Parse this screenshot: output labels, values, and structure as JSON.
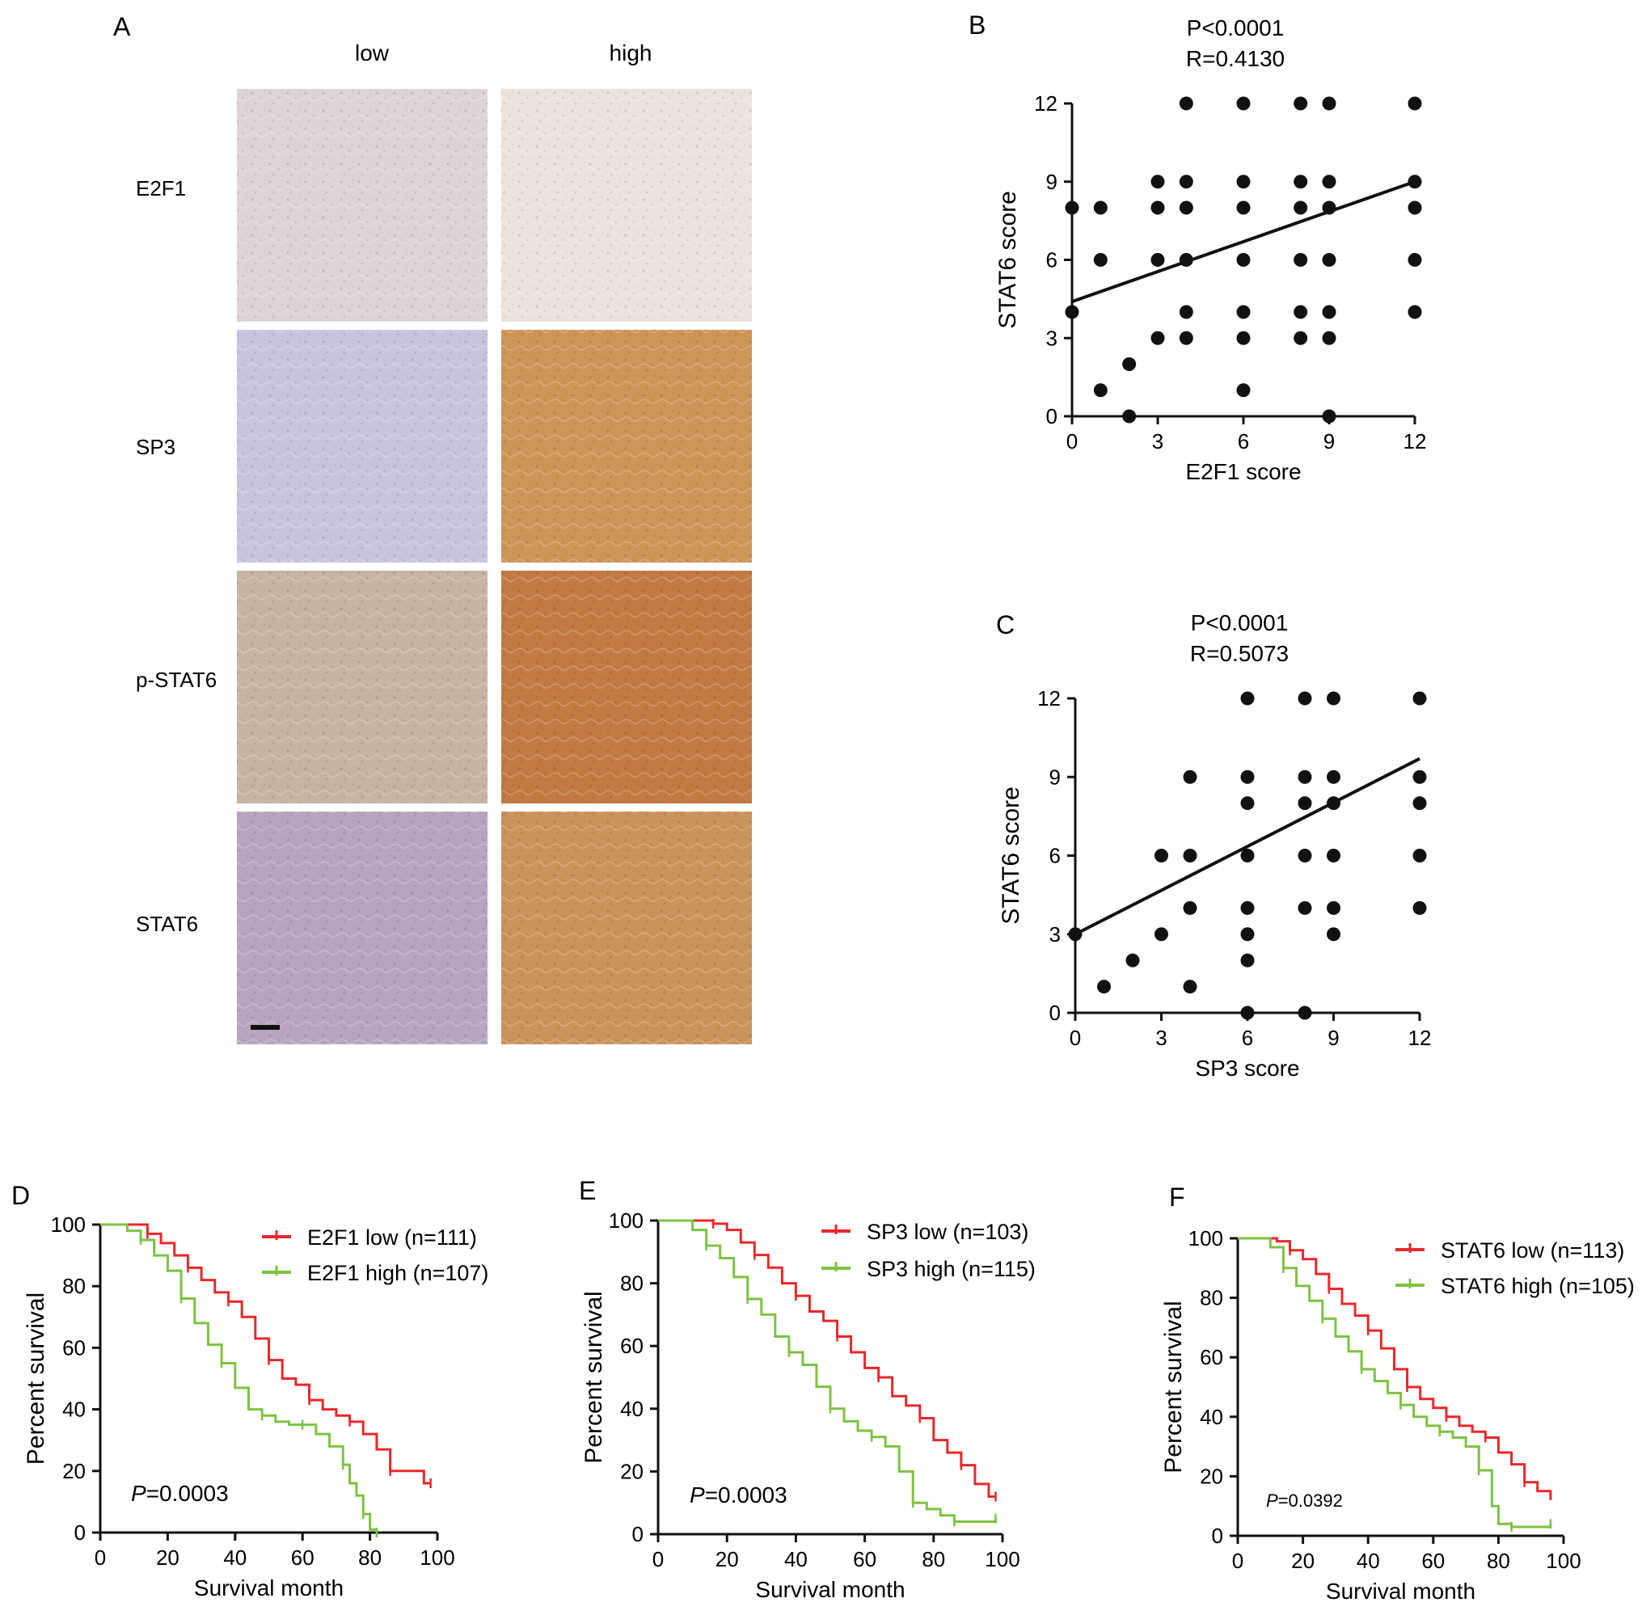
{
  "panel_A": {
    "letter": "A",
    "columns": [
      "low",
      "high"
    ],
    "rows": [
      "E2F1",
      "SP3",
      "p-STAT6",
      "STAT6"
    ],
    "tissue_colors": {
      "E2F1": {
        "low": "#ddd3d8",
        "high": "#ece4dc"
      },
      "SP3": {
        "low": "#c9c3e0",
        "high": "#cf9457"
      },
      "p-STAT6": {
        "low": "#c6b5a3",
        "high": "#c27a42"
      },
      "STAT6": {
        "low": "#b7a5bf",
        "high": "#c9935b"
      }
    }
  },
  "chart_data": [
    {
      "panel": "B",
      "type": "scatter",
      "title": "P<0.0001",
      "subtitle": "R=0.4130",
      "xlabel": "E2F1 score",
      "ylabel": "STAT6 score",
      "xlim": [
        0,
        12
      ],
      "ylim": [
        0,
        12
      ],
      "xticks": [
        0,
        3,
        6,
        9,
        12
      ],
      "yticks": [
        0,
        3,
        6,
        9,
        12
      ],
      "points": [
        [
          0,
          8
        ],
        [
          0,
          4
        ],
        [
          1,
          8
        ],
        [
          1,
          6
        ],
        [
          1,
          1
        ],
        [
          2,
          2
        ],
        [
          2,
          0
        ],
        [
          3,
          9
        ],
        [
          3,
          8
        ],
        [
          3,
          6
        ],
        [
          3,
          3
        ],
        [
          4,
          12
        ],
        [
          4,
          9
        ],
        [
          4,
          8
        ],
        [
          4,
          6
        ],
        [
          4,
          4
        ],
        [
          4,
          3
        ],
        [
          6,
          12
        ],
        [
          6,
          9
        ],
        [
          6,
          8
        ],
        [
          6,
          6
        ],
        [
          6,
          4
        ],
        [
          6,
          3
        ],
        [
          6,
          1
        ],
        [
          8,
          12
        ],
        [
          8,
          9
        ],
        [
          8,
          8
        ],
        [
          8,
          6
        ],
        [
          8,
          4
        ],
        [
          8,
          3
        ],
        [
          9,
          12
        ],
        [
          9,
          9
        ],
        [
          9,
          8
        ],
        [
          9,
          6
        ],
        [
          9,
          4
        ],
        [
          9,
          3
        ],
        [
          9,
          0
        ],
        [
          12,
          12
        ],
        [
          12,
          9
        ],
        [
          12,
          8
        ],
        [
          12,
          6
        ],
        [
          12,
          4
        ]
      ],
      "fit_line": [
        [
          0,
          4.4
        ],
        [
          12,
          9
        ]
      ]
    },
    {
      "panel": "C",
      "type": "scatter",
      "title": "P<0.0001",
      "subtitle": "R=0.5073",
      "xlabel": "SP3 score",
      "ylabel": "STAT6 score",
      "xlim": [
        0,
        12
      ],
      "ylim": [
        0,
        12
      ],
      "xticks": [
        0,
        3,
        6,
        9,
        12
      ],
      "yticks": [
        0,
        3,
        6,
        9,
        12
      ],
      "points": [
        [
          0,
          3
        ],
        [
          1,
          1
        ],
        [
          2,
          2
        ],
        [
          3,
          6
        ],
        [
          3,
          3
        ],
        [
          4,
          9
        ],
        [
          4,
          6
        ],
        [
          4,
          4
        ],
        [
          4,
          1
        ],
        [
          6,
          12
        ],
        [
          6,
          9
        ],
        [
          6,
          8
        ],
        [
          6,
          6
        ],
        [
          6,
          4
        ],
        [
          6,
          3
        ],
        [
          6,
          2
        ],
        [
          6,
          0
        ],
        [
          8,
          12
        ],
        [
          8,
          9
        ],
        [
          8,
          8
        ],
        [
          8,
          6
        ],
        [
          8,
          4
        ],
        [
          8,
          0
        ],
        [
          9,
          12
        ],
        [
          9,
          9
        ],
        [
          9,
          8
        ],
        [
          9,
          6
        ],
        [
          9,
          4
        ],
        [
          9,
          3
        ],
        [
          12,
          12
        ],
        [
          12,
          9
        ],
        [
          12,
          8
        ],
        [
          12,
          6
        ],
        [
          12,
          4
        ]
      ],
      "fit_line": [
        [
          0,
          3
        ],
        [
          12,
          9.7
        ]
      ]
    },
    {
      "panel": "D",
      "type": "line",
      "xlabel": "Survival month",
      "ylabel": "Percent survival",
      "xlim": [
        0,
        100
      ],
      "ylim": [
        0,
        100
      ],
      "xticks": [
        0,
        20,
        40,
        60,
        80,
        100
      ],
      "yticks": [
        0,
        20,
        40,
        60,
        80,
        100
      ],
      "annotation_prefix": "P",
      "annotation_value": "=0.0003",
      "series": [
        {
          "name": "E2F1 low (n=111)",
          "color": "#e8282b",
          "x": [
            0,
            10,
            14,
            18,
            22,
            26,
            30,
            34,
            38,
            42,
            46,
            50,
            54,
            58,
            62,
            66,
            70,
            74,
            78,
            82,
            86,
            90,
            96,
            98
          ],
          "y": [
            100,
            100,
            97,
            94,
            90,
            86,
            82,
            78,
            75,
            70,
            63,
            56,
            50,
            48,
            43,
            40,
            38,
            36,
            32,
            27,
            20,
            20,
            16,
            16
          ]
        },
        {
          "name": "E2F1 high (n=107)",
          "color": "#7ec242",
          "x": [
            0,
            8,
            12,
            16,
            20,
            24,
            28,
            32,
            36,
            40,
            44,
            48,
            52,
            56,
            60,
            64,
            68,
            72,
            74,
            76,
            78,
            80,
            81,
            82
          ],
          "y": [
            100,
            98,
            95,
            90,
            85,
            76,
            68,
            61,
            55,
            47,
            40,
            38,
            36,
            35,
            35,
            32,
            28,
            22,
            16,
            12,
            6,
            1,
            1,
            0
          ]
        }
      ]
    },
    {
      "panel": "E",
      "type": "line",
      "xlabel": "Survival month",
      "ylabel": "Percent survival",
      "xlim": [
        0,
        100
      ],
      "ylim": [
        0,
        100
      ],
      "xticks": [
        0,
        20,
        40,
        60,
        80,
        100
      ],
      "yticks": [
        0,
        20,
        40,
        60,
        80,
        100
      ],
      "annotation_prefix": "P",
      "annotation_value": "=0.0003",
      "series": [
        {
          "name": "SP3 low (n=103)",
          "color": "#e8282b",
          "x": [
            0,
            12,
            16,
            20,
            24,
            28,
            32,
            36,
            40,
            44,
            48,
            52,
            56,
            60,
            64,
            68,
            72,
            76,
            80,
            84,
            88,
            92,
            96,
            98
          ],
          "y": [
            100,
            100,
            99,
            97,
            93,
            89,
            85,
            80,
            76,
            71,
            68,
            63,
            58,
            53,
            50,
            44,
            41,
            37,
            30,
            26,
            22,
            16,
            12,
            12
          ]
        },
        {
          "name": "SP3 high (n=115)",
          "color": "#7ec242",
          "x": [
            0,
            10,
            14,
            18,
            22,
            26,
            30,
            34,
            38,
            42,
            46,
            50,
            54,
            58,
            62,
            66,
            70,
            74,
            78,
            82,
            86,
            90,
            96,
            98
          ],
          "y": [
            100,
            97,
            92,
            88,
            82,
            75,
            70,
            63,
            58,
            54,
            47,
            40,
            36,
            33,
            31,
            28,
            20,
            10,
            8,
            6,
            4,
            4,
            4,
            5
          ]
        }
      ]
    },
    {
      "panel": "F",
      "type": "line",
      "xlabel": "Survival month",
      "ylabel": "Percent survival",
      "xlim": [
        0,
        100
      ],
      "ylim": [
        0,
        100
      ],
      "xticks": [
        0,
        20,
        40,
        60,
        80,
        100
      ],
      "yticks": [
        0,
        20,
        40,
        60,
        80,
        100
      ],
      "annotation_prefix": "P",
      "annotation_value": "=0.0392",
      "series": [
        {
          "name": "STAT6 low (n=113)",
          "color": "#e8282b",
          "x": [
            0,
            12,
            16,
            20,
            24,
            28,
            32,
            36,
            40,
            44,
            48,
            52,
            56,
            60,
            64,
            68,
            72,
            76,
            80,
            84,
            88,
            92,
            96
          ],
          "y": [
            100,
            99,
            96,
            93,
            88,
            83,
            78,
            74,
            69,
            63,
            56,
            50,
            46,
            43,
            40,
            37,
            35,
            33,
            28,
            24,
            18,
            15,
            12
          ]
        },
        {
          "name": "STAT6 high (n=105)",
          "color": "#7ec242",
          "x": [
            0,
            10,
            14,
            18,
            22,
            26,
            30,
            34,
            38,
            42,
            46,
            50,
            54,
            58,
            62,
            66,
            70,
            74,
            78,
            80,
            84,
            88,
            92,
            96
          ],
          "y": [
            100,
            97,
            90,
            84,
            79,
            73,
            67,
            62,
            56,
            52,
            48,
            44,
            40,
            37,
            35,
            33,
            30,
            22,
            10,
            4,
            3,
            3,
            3,
            4
          ]
        }
      ]
    }
  ]
}
